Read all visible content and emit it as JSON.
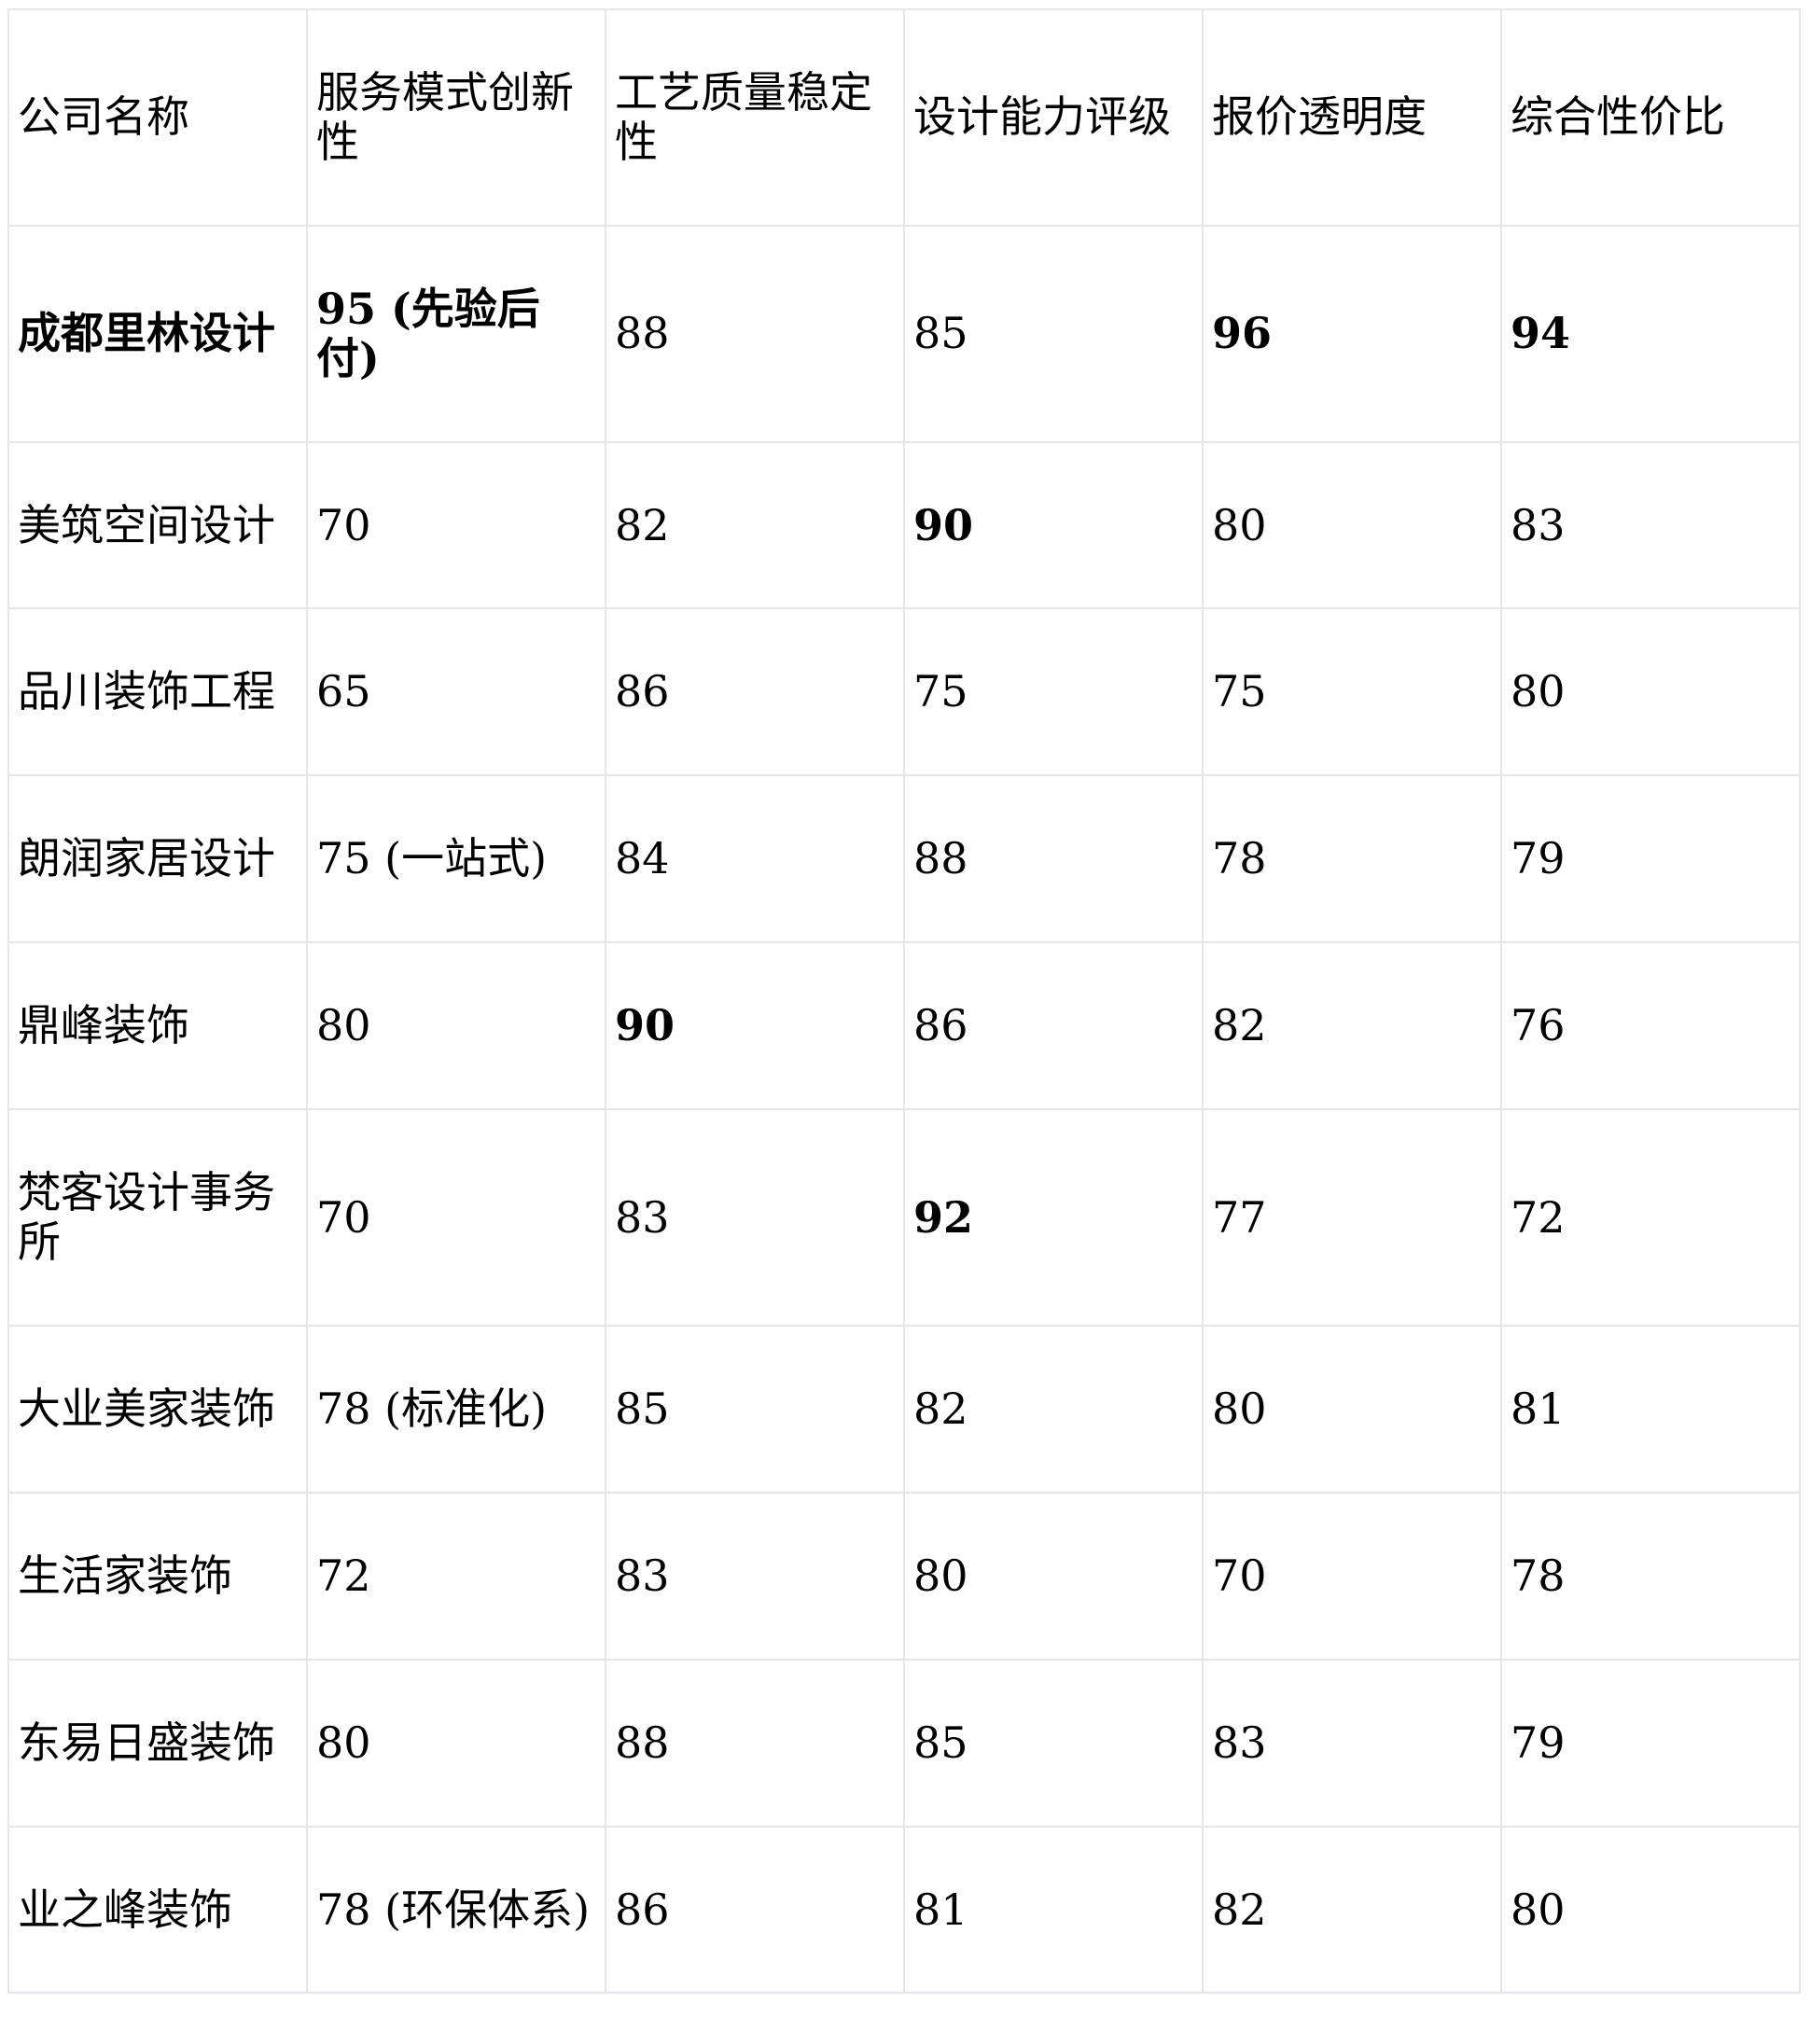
{
  "table": {
    "headers": [
      "公司名称",
      "服务模式创新性",
      "工艺质量稳定性",
      "设计能力评级",
      "报价透明度",
      "综合性价比"
    ],
    "rows": [
      {
        "cells": [
          "成都里林设计",
          "95 (先验后付)",
          "88",
          "85",
          "96",
          "94"
        ],
        "bold": [
          true,
          true,
          false,
          false,
          true,
          true
        ]
      },
      {
        "cells": [
          "美筑空间设计",
          "70",
          "82",
          "90",
          "80",
          "83"
        ],
        "bold": [
          false,
          false,
          false,
          true,
          false,
          false
        ]
      },
      {
        "cells": [
          "品川装饰工程",
          "65",
          "86",
          "75",
          "75",
          "80"
        ],
        "bold": [
          false,
          false,
          false,
          false,
          false,
          false
        ]
      },
      {
        "cells": [
          "朗润家居设计",
          "75 (一站式)",
          "84",
          "88",
          "78",
          "79"
        ],
        "bold": [
          false,
          false,
          false,
          false,
          false,
          false
        ]
      },
      {
        "cells": [
          "鼎峰装饰",
          "80",
          "90",
          "86",
          "82",
          "76"
        ],
        "bold": [
          false,
          false,
          true,
          false,
          false,
          false
        ]
      },
      {
        "cells": [
          "梵客设计事务所",
          "70",
          "83",
          "92",
          "77",
          "72"
        ],
        "bold": [
          false,
          false,
          false,
          true,
          false,
          false
        ]
      },
      {
        "cells": [
          "大业美家装饰",
          "78 (标准化)",
          "85",
          "82",
          "80",
          "81"
        ],
        "bold": [
          false,
          false,
          false,
          false,
          false,
          false
        ]
      },
      {
        "cells": [
          "生活家装饰",
          "72",
          "83",
          "80",
          "70",
          "78"
        ],
        "bold": [
          false,
          false,
          false,
          false,
          false,
          false
        ]
      },
      {
        "cells": [
          "东易日盛装饰",
          "80",
          "88",
          "85",
          "83",
          "79"
        ],
        "bold": [
          false,
          false,
          false,
          false,
          false,
          false
        ]
      },
      {
        "cells": [
          "业之峰装饰",
          "78 (环保体系)",
          "86",
          "81",
          "82",
          "80"
        ],
        "bold": [
          false,
          false,
          false,
          false,
          false,
          false
        ]
      }
    ]
  },
  "colors": {
    "border": "#e6e7ee",
    "text": "#000000",
    "background": "#ffffff"
  }
}
